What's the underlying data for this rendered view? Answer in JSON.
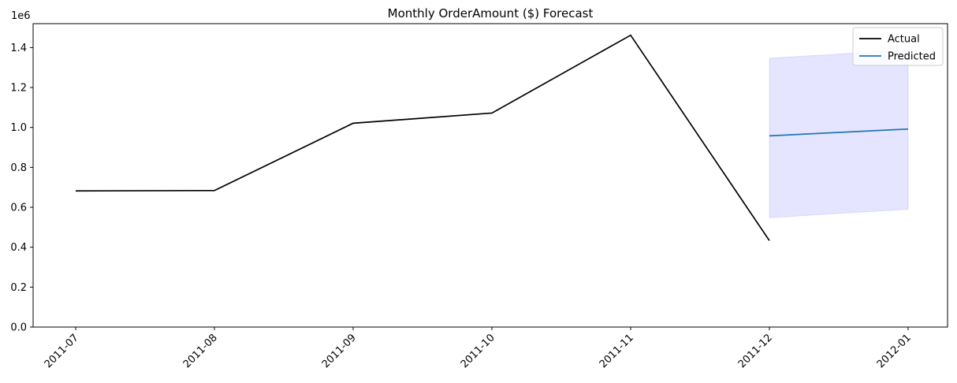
{
  "chart_data": {
    "type": "line",
    "title": "Monthly OrderAmount ($) Forecast",
    "xlabel": "",
    "ylabel": "",
    "y_multiplier_label": "1e6",
    "categories": [
      "2011-07",
      "2011-08",
      "2011-09",
      "2011-10",
      "2011-11",
      "2011-12",
      "2012-01"
    ],
    "ylim": [
      0,
      1.52
    ],
    "yticks": [
      0.0,
      0.2,
      0.4,
      0.6,
      0.8,
      1.0,
      1.2,
      1.4
    ],
    "ytick_labels": [
      "0.0",
      "0.2",
      "0.4",
      "0.6",
      "0.8",
      "1.0",
      "1.2",
      "1.4"
    ],
    "series": [
      {
        "name": "Actual",
        "color": "#000000",
        "points": [
          {
            "x": "2011-07",
            "y": 0.682
          },
          {
            "x": "2011-08",
            "y": 0.684
          },
          {
            "x": "2011-09",
            "y": 1.021
          },
          {
            "x": "2011-10",
            "y": 1.072
          },
          {
            "x": "2011-11",
            "y": 1.462
          },
          {
            "x": "2011-12",
            "y": 0.433
          }
        ]
      },
      {
        "name": "Predicted",
        "color": "#1f77b4",
        "points": [
          {
            "x": "2011-12",
            "y": 0.958
          },
          {
            "x": "2012-01",
            "y": 0.992
          }
        ],
        "interval": {
          "color": "#0000ff",
          "points": [
            {
              "x": "2011-12",
              "lower": 0.548,
              "upper": 1.347
            },
            {
              "x": "2012-01",
              "lower": 0.59,
              "upper": 1.388
            }
          ]
        }
      }
    ],
    "grid": false,
    "legend_position": "upper-right"
  }
}
